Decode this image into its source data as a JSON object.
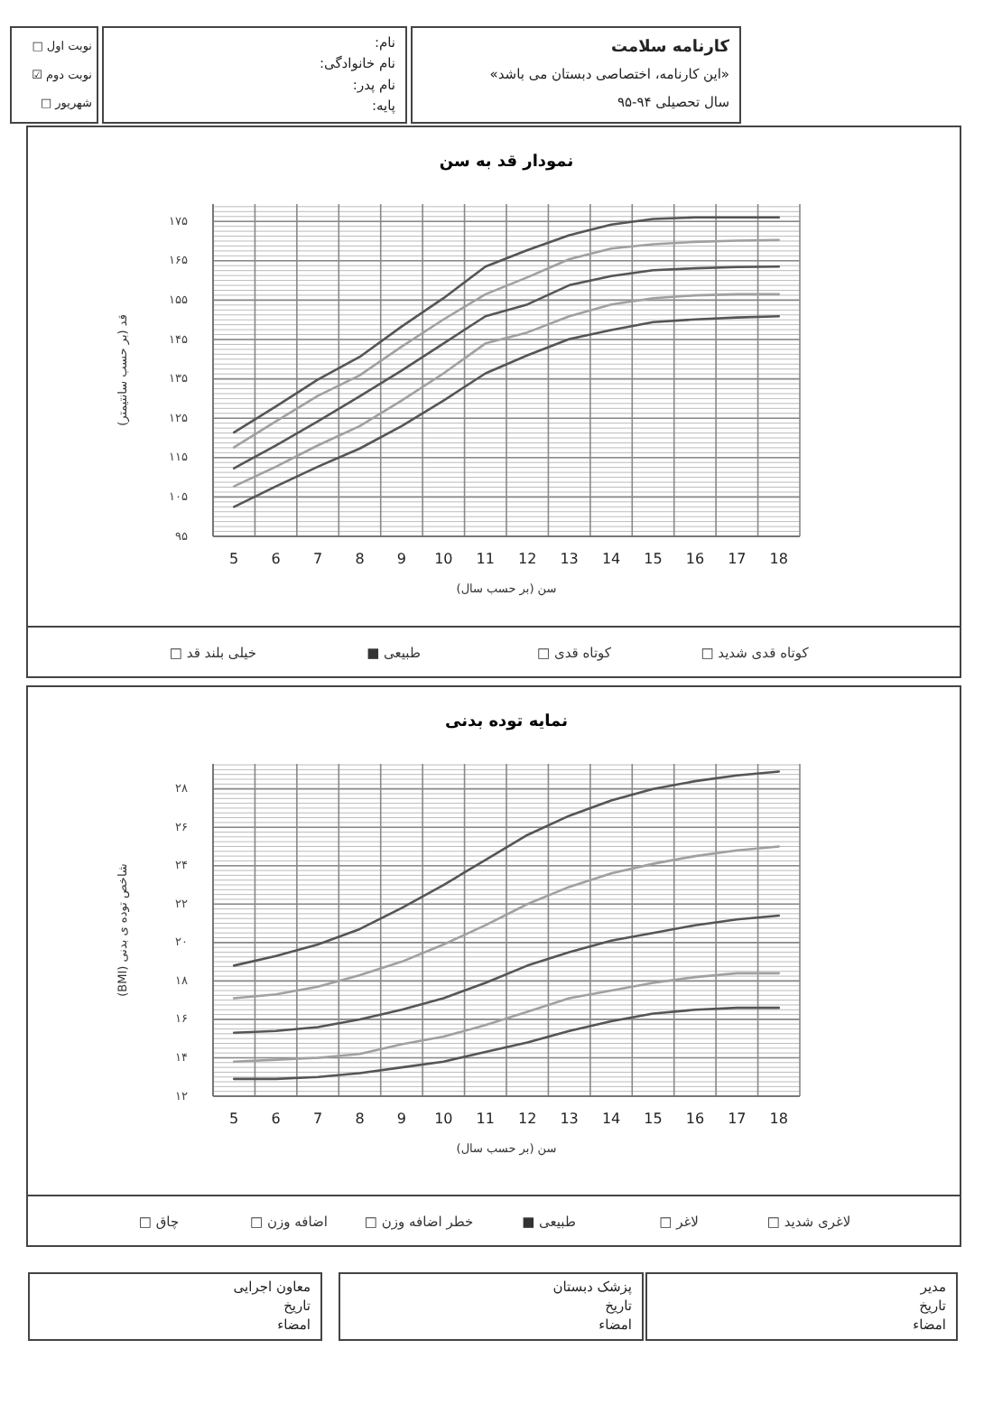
{
  "chart_data": [
    {
      "type": "other",
      "title": "کارنامه سلامت",
      "annotations": [
        "«این کارنامه، اختصاصی دبستان می باشد»",
        "سال تحصیلی ۹۴-۹۵"
      ]
    },
    {
      "type": "other",
      "annotations": [
        "نام:",
        "نام خانوادگی:",
        "نام پدر:",
        "پایه:"
      ]
    },
    {
      "type": "other",
      "annotations": [
        "نوبت اول □",
        "نوبت دوم ☑",
        "شهریور □"
      ]
    },
    {
      "type": "line",
      "title": "نمودار قد به سن",
      "xlabel": "سن  (بر حسب سال)",
      "ylabel": "قد (بر حسب سانتیمتر)",
      "grid": true,
      "marker": "none",
      "x": [
        5,
        6,
        7,
        8,
        9,
        10,
        11,
        12,
        13,
        14,
        15,
        16,
        17,
        18
      ],
      "xlim": [
        4.5,
        18.5
      ],
      "xticks": [
        5,
        6,
        7,
        8,
        9,
        10,
        11,
        12,
        13,
        14,
        15,
        16,
        17,
        18
      ],
      "ylim": [
        95,
        179.4
      ],
      "yticks": [
        {
          "value": 95,
          "label": "۹۵"
        },
        {
          "value": 105,
          "label": "۱۰۵"
        },
        {
          "value": 115,
          "label": "۱۱۵"
        },
        {
          "value": 125,
          "label": "۱۲۵"
        },
        {
          "value": 135,
          "label": "۱۳۵"
        },
        {
          "value": 145,
          "label": "۱۴۵"
        },
        {
          "value": 155,
          "label": "۱۵۵"
        },
        {
          "value": 165,
          "label": "۱۶۵"
        },
        {
          "value": 175,
          "label": "۱۷۵"
        }
      ],
      "series": [
        {
          "color": "#555555",
          "values": [
            121.4,
            128,
            134.8,
            140.6,
            148.3,
            155.5,
            163.5,
            167.7,
            171.5,
            174.2,
            175.6,
            176,
            176,
            176
          ]
        },
        {
          "color": "#a0a0a0",
          "values": [
            117.6,
            124.2,
            130.7,
            135.9,
            143.2,
            150.1,
            156.5,
            160.8,
            165.4,
            168.1,
            169.2,
            169.8,
            170.1,
            170.3
          ]
        },
        {
          "color": "#555555",
          "values": [
            112.3,
            118.1,
            124.2,
            130.6,
            137.1,
            144,
            150.9,
            153.9,
            158.8,
            161.1,
            162.6,
            163.1,
            163.4,
            163.5
          ]
        },
        {
          "color": "#a0a0a0",
          "values": [
            107.7,
            112.7,
            118.1,
            123,
            129.5,
            136.4,
            144,
            146.8,
            150.9,
            153.9,
            155.5,
            156.2,
            156.5,
            156.5
          ]
        },
        {
          "color": "#555555",
          "values": [
            102.5,
            107.7,
            112.7,
            117.3,
            123,
            129.5,
            136.4,
            141,
            145.1,
            147.4,
            149.4,
            150.1,
            150.6,
            150.9
          ]
        }
      ],
      "annotations": [
        "کوتاه قدی شدید □",
        "کوتاه قدی □",
        "طبیعی ■",
        "خیلی بلند قد □"
      ]
    },
    {
      "type": "line",
      "title": "نمایه توده بدنی",
      "xlabel": "سن (بر حسب سال)",
      "ylabel": "شاخص توده ی بدنی (BMI)",
      "grid": true,
      "marker": "none",
      "x": [
        5,
        6,
        7,
        8,
        9,
        10,
        11,
        12,
        13,
        14,
        15,
        16,
        17,
        18
      ],
      "xlim": [
        4.5,
        18.5
      ],
      "xticks": [
        5,
        6,
        7,
        8,
        9,
        10,
        11,
        12,
        13,
        14,
        15,
        16,
        17,
        18
      ],
      "ylim": [
        12,
        29.3
      ],
      "yticks": [
        {
          "value": 12,
          "label": "۱۲"
        },
        {
          "value": 14,
          "label": "۱۴"
        },
        {
          "value": 16,
          "label": "۱۶"
        },
        {
          "value": 18,
          "label": "۱۸"
        },
        {
          "value": 20,
          "label": "۲۰"
        },
        {
          "value": 22,
          "label": "۲۲"
        },
        {
          "value": 24,
          "label": "۲۴"
        },
        {
          "value": 26,
          "label": "۲۶"
        },
        {
          "value": 28,
          "label": "۲۸"
        }
      ],
      "series": [
        {
          "color": "#555555",
          "values": [
            18.8,
            19.3,
            19.9,
            20.7,
            21.8,
            23,
            24.3,
            25.6,
            26.6,
            27.4,
            28,
            28.4,
            28.7,
            28.9
          ]
        },
        {
          "color": "#a0a0a0",
          "values": [
            17.1,
            17.3,
            17.7,
            18.3,
            19,
            19.9,
            20.9,
            22,
            22.9,
            23.6,
            24.1,
            24.5,
            24.8,
            25
          ]
        },
        {
          "color": "#555555",
          "values": [
            15.3,
            15.4,
            15.6,
            16,
            16.5,
            17.1,
            17.9,
            18.8,
            19.5,
            20.1,
            20.5,
            20.9,
            21.2,
            21.4
          ]
        },
        {
          "color": "#a0a0a0",
          "values": [
            13.8,
            13.9,
            14,
            14.2,
            14.7,
            15.1,
            15.7,
            16.4,
            17.1,
            17.5,
            17.9,
            18.2,
            18.4,
            18.4
          ]
        },
        {
          "color": "#555555",
          "values": [
            12.9,
            12.9,
            13,
            13.2,
            13.5,
            13.8,
            14.3,
            14.8,
            15.4,
            15.9,
            16.3,
            16.5,
            16.6,
            16.6
          ]
        }
      ],
      "annotations": [
        "لاغری شدید □",
        "لاغر □",
        "طبیعی ■",
        "خطر اضافه وزن □",
        "اضافه وزن □",
        "چاق □"
      ]
    },
    {
      "type": "other",
      "annotations": [
        "معاون اجرایی",
        "تاریخ",
        "امضاء"
      ]
    },
    {
      "type": "other",
      "annotations": [
        "پزشک دبستان",
        "تاریخ",
        "امضاء"
      ]
    },
    {
      "type": "other",
      "annotations": [
        "مدیر",
        "تاریخ",
        "امضاء"
      ]
    }
  ]
}
